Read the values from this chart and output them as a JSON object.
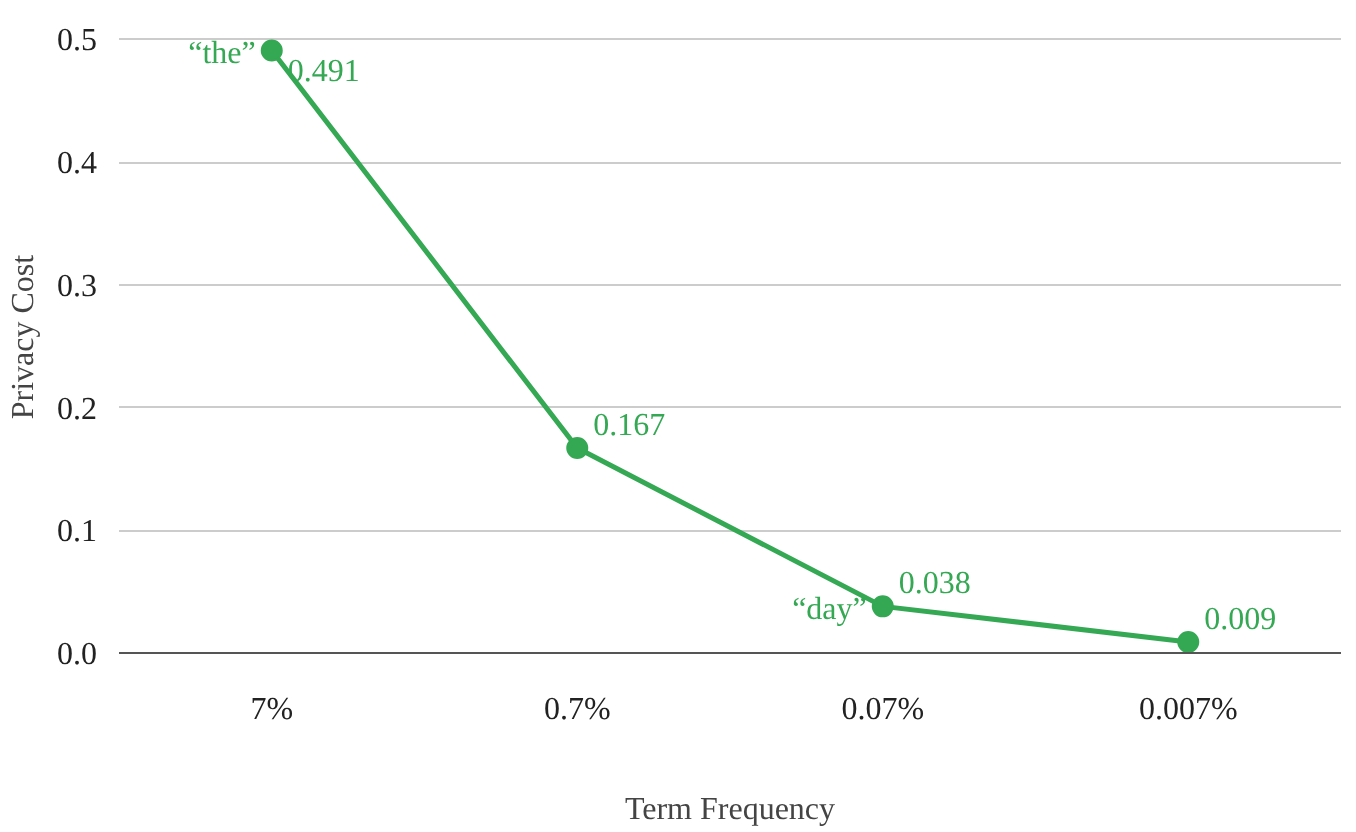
{
  "chart_data": {
    "type": "line",
    "xlabel": "Term Frequency",
    "ylabel": "Privacy Cost",
    "categories": [
      "7%",
      "0.7%",
      "0.07%",
      "0.007%"
    ],
    "series": [
      {
        "color": "#34a853",
        "values": [
          0.491,
          0.167,
          0.038,
          0.009
        ]
      }
    ],
    "ylim": [
      0,
      0.5
    ],
    "yticks": [
      {
        "value": 0,
        "label": "0.0"
      },
      0.1,
      0.2,
      0.3,
      0.4,
      0.5
    ],
    "grid": "y",
    "marker": "circle",
    "line_style": "solid",
    "data_labels": true,
    "annotations": [
      {
        "text": "“the”",
        "x": "7%",
        "y": 0.491
      },
      {
        "text": "“day”",
        "x": "0.07%",
        "y": 0.038
      }
    ]
  }
}
